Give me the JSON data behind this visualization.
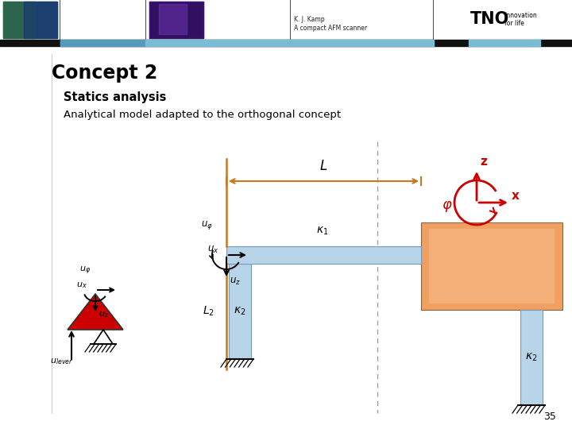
{
  "title": "Concept 2",
  "subtitle1": "Statics analysis",
  "subtitle2": "Analytical model adapted to the orthogonal concept",
  "page_number": "35",
  "header_text1": "K. J. Kamp",
  "header_text2": "A compact AFM scanner",
  "bg_color": "#ffffff",
  "header_bar_color": "#7bbcd5",
  "title_color": "#000000",
  "orange_color": "#e87722",
  "red_color": "#cc0000",
  "beam_color": "#b8d4e8",
  "column_color": "#b8d4e8",
  "lever_red": "#cc0000",
  "dashed_line_color": "#999999",
  "orange_box_color": "#f0a060",
  "dim_arrow_color": "#c87820"
}
